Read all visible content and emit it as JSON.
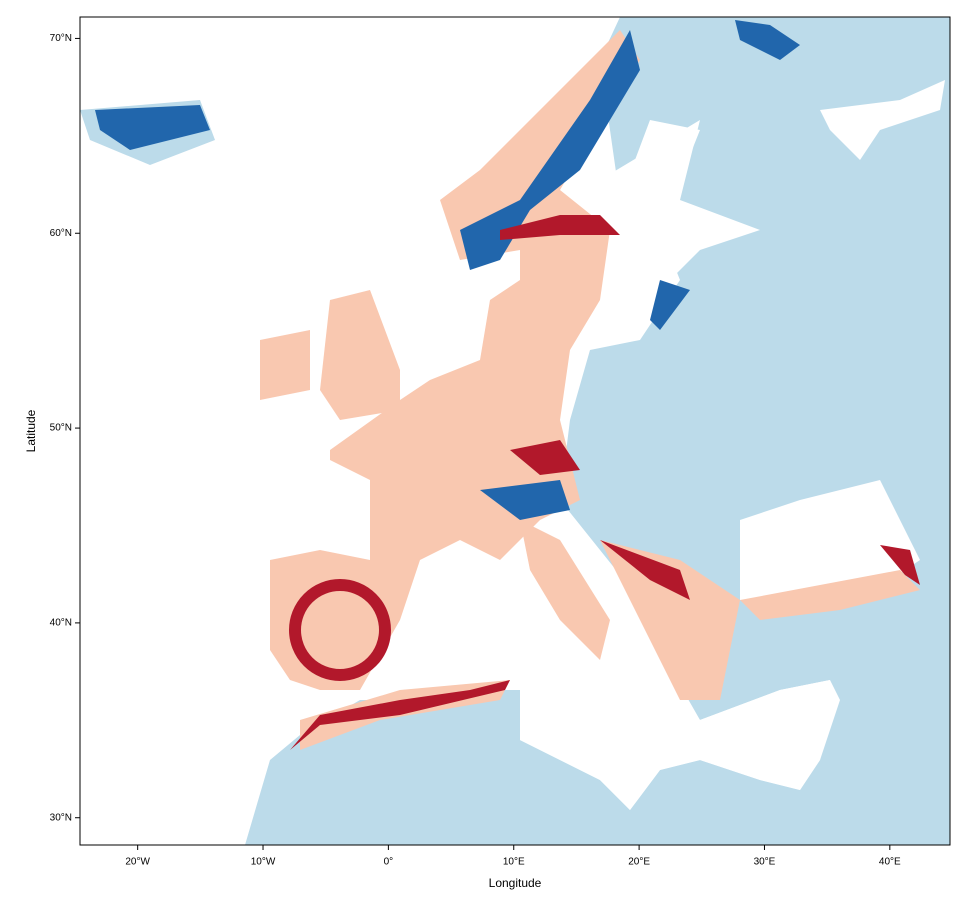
{
  "chart_data": {
    "type": "map",
    "xlabel": "Longitude",
    "ylabel": "Latitude",
    "xlim": [
      -24.6,
      44.8
    ],
    "ylim": [
      28.6,
      71.1
    ],
    "xticks": [
      {
        "value": -20,
        "label": "20°W"
      },
      {
        "value": -10,
        "label": "10°W"
      },
      {
        "value": 0,
        "label": "0°"
      },
      {
        "value": 10,
        "label": "10°E"
      },
      {
        "value": 20,
        "label": "20°E"
      },
      {
        "value": 30,
        "label": "30°E"
      },
      {
        "value": 40,
        "label": "40°E"
      }
    ],
    "yticks": [
      {
        "value": 30,
        "label": "30°N"
      },
      {
        "value": 40,
        "label": "40°N"
      },
      {
        "value": 50,
        "label": "50°N"
      },
      {
        "value": 60,
        "label": "60°N"
      },
      {
        "value": 70,
        "label": "70°N"
      }
    ]
  }
}
